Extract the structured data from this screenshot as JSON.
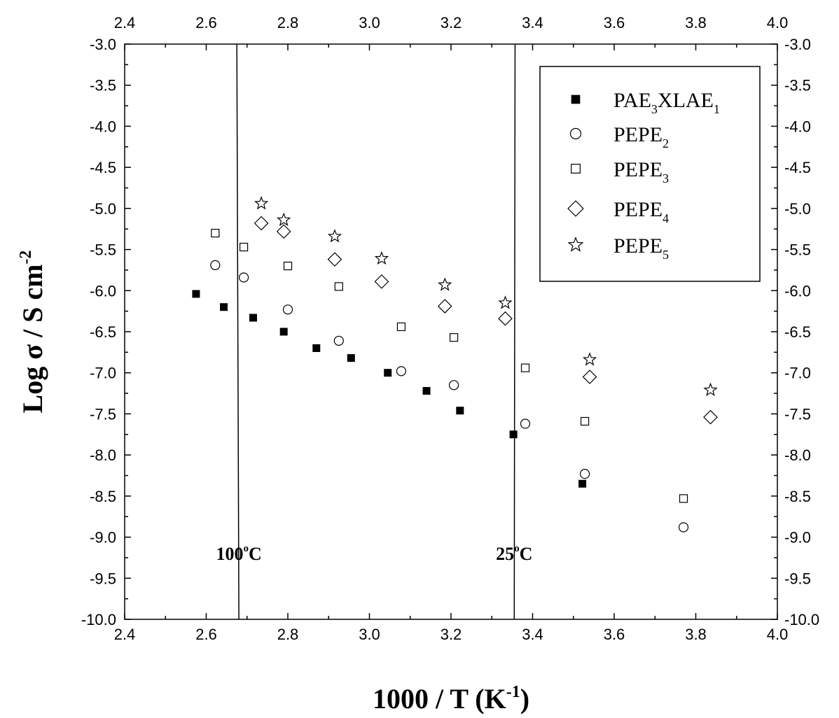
{
  "chart_data": {
    "type": "scatter",
    "xlabel": {
      "main": "1000 / T (K",
      "sup": "-1",
      "close": ")"
    },
    "ylabel": {
      "main": "Log σ / S cm",
      "sup": "-2"
    },
    "xlim": [
      2.4,
      4.0
    ],
    "ylim": [
      -10.0,
      -3.0
    ],
    "x_ticks": [
      "2.4",
      "2.6",
      "2.8",
      "3.0",
      "3.2",
      "3.4",
      "3.6",
      "3.8",
      "4.0"
    ],
    "y_ticks": [
      "-3.0",
      "-3.5",
      "-4.0",
      "-4.5",
      "-5.0",
      "-5.5",
      "-6.0",
      "-6.5",
      "-7.0",
      "-7.5",
      "-8.0",
      "-8.5",
      "-9.0",
      "-9.5",
      "-10.0"
    ],
    "mirror_axes": true,
    "legend_position": "top-right",
    "series": [
      {
        "name_parts": [
          [
            "PAE",
            false
          ],
          [
            "3",
            true
          ],
          [
            "XLAE",
            false
          ],
          [
            "1",
            true
          ]
        ],
        "marker": "filled-square",
        "points": [
          [
            2.575,
            -6.04
          ],
          [
            2.643,
            -6.2
          ],
          [
            2.715,
            -6.33
          ],
          [
            2.79,
            -6.5
          ],
          [
            2.87,
            -6.7
          ],
          [
            2.955,
            -6.82
          ],
          [
            3.045,
            -7.0
          ],
          [
            3.14,
            -7.22
          ],
          [
            3.222,
            -7.46
          ],
          [
            3.353,
            -7.75
          ],
          [
            3.522,
            -8.35
          ]
        ]
      },
      {
        "name_parts": [
          [
            "PEPE",
            false
          ],
          [
            "2",
            true
          ]
        ],
        "marker": "open-circle",
        "points": [
          [
            2.622,
            -5.69
          ],
          [
            2.692,
            -5.84
          ],
          [
            2.8,
            -6.23
          ],
          [
            2.925,
            -6.61
          ],
          [
            3.078,
            -6.98
          ],
          [
            3.207,
            -7.15
          ],
          [
            3.382,
            -7.62
          ],
          [
            3.528,
            -8.23
          ],
          [
            3.77,
            -8.88
          ]
        ]
      },
      {
        "name_parts": [
          [
            "PEPE",
            false
          ],
          [
            "3",
            true
          ]
        ],
        "marker": "open-square",
        "points": [
          [
            2.622,
            -5.3
          ],
          [
            2.692,
            -5.47
          ],
          [
            2.8,
            -5.7
          ],
          [
            2.925,
            -5.95
          ],
          [
            3.078,
            -6.44
          ],
          [
            3.207,
            -6.57
          ],
          [
            3.382,
            -6.94
          ],
          [
            3.528,
            -7.59
          ],
          [
            3.77,
            -8.53
          ]
        ]
      },
      {
        "name_parts": [
          [
            "PEPE",
            false
          ],
          [
            "4",
            true
          ]
        ],
        "marker": "open-diamond",
        "points": [
          [
            2.735,
            -5.18
          ],
          [
            2.79,
            -5.28
          ],
          [
            2.915,
            -5.62
          ],
          [
            3.03,
            -5.89
          ],
          [
            3.185,
            -6.19
          ],
          [
            3.333,
            -6.34
          ],
          [
            3.54,
            -7.05
          ],
          [
            3.836,
            -7.54
          ]
        ]
      },
      {
        "name_parts": [
          [
            "PEPE",
            false
          ],
          [
            "5",
            true
          ]
        ],
        "marker": "open-star",
        "points": [
          [
            2.735,
            -4.94
          ],
          [
            2.79,
            -5.14
          ],
          [
            2.915,
            -5.34
          ],
          [
            3.03,
            -5.61
          ],
          [
            3.185,
            -5.93
          ],
          [
            3.333,
            -6.15
          ],
          [
            3.54,
            -6.84
          ],
          [
            3.836,
            -7.21
          ]
        ]
      }
    ],
    "reference_lines": [
      {
        "x": [
          2.675,
          2.68
        ],
        "label_main": "100",
        "label_sup": "o",
        "label_tail": "C",
        "label_y": -9.2
      },
      {
        "x": [
          3.357,
          3.355
        ],
        "label_main": "25",
        "label_sup": "o",
        "label_tail": "C",
        "label_y": -9.2
      }
    ]
  }
}
